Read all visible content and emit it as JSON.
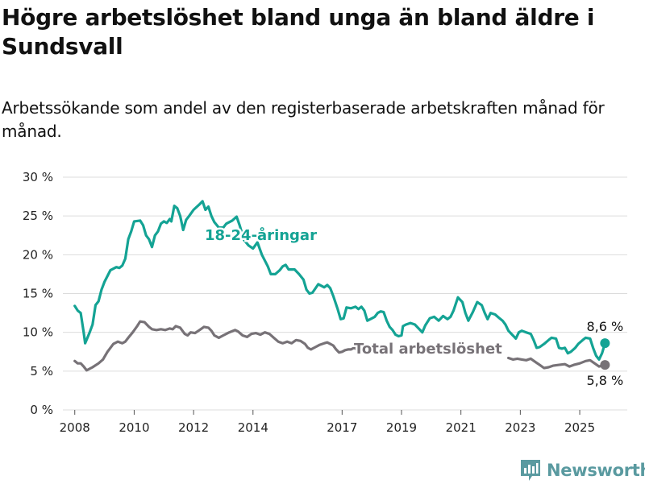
{
  "title": "Högre arbetslöshet bland unga än bland äldre i Sundsvall",
  "subtitle": "Arbetssökande som andel av den registerbaserade arbetskraften månad för månad.",
  "brand": "Newsworthy",
  "colors": {
    "youth": "#14a394",
    "total": "#777277",
    "grid": "#dcdcdc",
    "brand": "#5a9aa0"
  },
  "chart_data": {
    "type": "line",
    "xlim": [
      2007.6,
      2026.6
    ],
    "ylim": [
      0,
      30
    ],
    "x_ticks": [
      2008,
      2010,
      2012,
      2014,
      2017,
      2019,
      2021,
      2023,
      2025
    ],
    "y_ticks": [
      0,
      5,
      10,
      15,
      20,
      25,
      30
    ],
    "y_tick_labels": [
      "0 %",
      "5 %",
      "10 %",
      "15 %",
      "20 %",
      "25 %",
      "30 %"
    ],
    "grid": true,
    "series": [
      {
        "name": "18-24-åringar",
        "end_label": "8,6 %",
        "points": [
          [
            2008.0,
            13.4
          ],
          [
            2008.1,
            12.8
          ],
          [
            2008.2,
            12.5
          ],
          [
            2008.3,
            10.0
          ],
          [
            2008.35,
            8.6
          ],
          [
            2008.5,
            10.0
          ],
          [
            2008.6,
            11.0
          ],
          [
            2008.7,
            13.5
          ],
          [
            2008.8,
            14.0
          ],
          [
            2008.9,
            15.5
          ],
          [
            2009.0,
            16.5
          ],
          [
            2009.2,
            18.0
          ],
          [
            2009.4,
            18.4
          ],
          [
            2009.5,
            18.3
          ],
          [
            2009.6,
            18.6
          ],
          [
            2009.7,
            19.5
          ],
          [
            2009.8,
            22.0
          ],
          [
            2009.9,
            23.0
          ],
          [
            2010.0,
            24.3
          ],
          [
            2010.2,
            24.4
          ],
          [
            2010.3,
            23.8
          ],
          [
            2010.4,
            22.5
          ],
          [
            2010.5,
            22.0
          ],
          [
            2010.6,
            21.0
          ],
          [
            2010.7,
            22.5
          ],
          [
            2010.8,
            23.0
          ],
          [
            2010.9,
            24.0
          ],
          [
            2011.0,
            24.3
          ],
          [
            2011.1,
            24.1
          ],
          [
            2011.2,
            24.6
          ],
          [
            2011.25,
            24.3
          ],
          [
            2011.35,
            26.3
          ],
          [
            2011.45,
            26.0
          ],
          [
            2011.55,
            25.0
          ],
          [
            2011.65,
            23.2
          ],
          [
            2011.75,
            24.5
          ],
          [
            2011.85,
            25.0
          ],
          [
            2012.0,
            25.8
          ],
          [
            2012.2,
            26.5
          ],
          [
            2012.3,
            26.9
          ],
          [
            2012.4,
            25.8
          ],
          [
            2012.5,
            26.2
          ],
          [
            2012.6,
            25.0
          ],
          [
            2012.7,
            24.2
          ],
          [
            2012.85,
            23.5
          ],
          [
            2013.0,
            23.5
          ],
          [
            2013.1,
            24.0
          ],
          [
            2013.3,
            24.4
          ],
          [
            2013.45,
            24.9
          ],
          [
            2013.55,
            23.8
          ],
          [
            2013.7,
            21.9
          ],
          [
            2013.85,
            21.2
          ],
          [
            2014.0,
            20.8
          ],
          [
            2014.15,
            21.6
          ],
          [
            2014.3,
            20.0
          ],
          [
            2014.5,
            18.5
          ],
          [
            2014.6,
            17.5
          ],
          [
            2014.75,
            17.5
          ],
          [
            2014.9,
            18.0
          ],
          [
            2015.0,
            18.5
          ],
          [
            2015.1,
            18.7
          ],
          [
            2015.2,
            18.1
          ],
          [
            2015.4,
            18.1
          ],
          [
            2015.55,
            17.5
          ],
          [
            2015.7,
            16.8
          ],
          [
            2015.8,
            15.5
          ],
          [
            2015.9,
            15.0
          ],
          [
            2016.0,
            15.1
          ],
          [
            2016.2,
            16.2
          ],
          [
            2016.4,
            15.8
          ],
          [
            2016.5,
            16.1
          ],
          [
            2016.6,
            15.7
          ],
          [
            2016.7,
            14.7
          ],
          [
            2016.85,
            13.0
          ],
          [
            2016.95,
            11.7
          ],
          [
            2017.05,
            11.8
          ],
          [
            2017.15,
            13.2
          ],
          [
            2017.3,
            13.1
          ],
          [
            2017.45,
            13.3
          ],
          [
            2017.55,
            13.0
          ],
          [
            2017.65,
            13.3
          ],
          [
            2017.75,
            12.8
          ],
          [
            2017.85,
            11.5
          ],
          [
            2017.95,
            11.7
          ],
          [
            2018.1,
            12.0
          ],
          [
            2018.2,
            12.5
          ],
          [
            2018.3,
            12.7
          ],
          [
            2018.4,
            12.6
          ],
          [
            2018.5,
            11.5
          ],
          [
            2018.6,
            10.7
          ],
          [
            2018.7,
            10.3
          ],
          [
            2018.8,
            9.7
          ],
          [
            2018.9,
            9.5
          ],
          [
            2019.0,
            9.6
          ],
          [
            2019.05,
            10.8
          ],
          [
            2019.15,
            11.0
          ],
          [
            2019.3,
            11.2
          ],
          [
            2019.45,
            11.0
          ],
          [
            2019.55,
            10.6
          ],
          [
            2019.7,
            10.0
          ],
          [
            2019.8,
            10.9
          ],
          [
            2019.95,
            11.8
          ],
          [
            2020.1,
            12.0
          ],
          [
            2020.25,
            11.5
          ],
          [
            2020.4,
            12.1
          ],
          [
            2020.55,
            11.7
          ],
          [
            2020.65,
            12.0
          ],
          [
            2020.75,
            12.8
          ],
          [
            2020.9,
            14.5
          ],
          [
            2021.05,
            13.9
          ],
          [
            2021.15,
            12.5
          ],
          [
            2021.25,
            11.5
          ],
          [
            2021.4,
            12.6
          ],
          [
            2021.55,
            13.9
          ],
          [
            2021.7,
            13.5
          ],
          [
            2021.8,
            12.5
          ],
          [
            2021.9,
            11.7
          ],
          [
            2022.0,
            12.5
          ],
          [
            2022.15,
            12.3
          ],
          [
            2022.3,
            11.8
          ],
          [
            2022.4,
            11.5
          ],
          [
            2022.5,
            11.0
          ],
          [
            2022.6,
            10.2
          ],
          [
            2022.7,
            9.8
          ],
          [
            2022.85,
            9.2
          ],
          [
            2022.95,
            10.0
          ],
          [
            2023.05,
            10.2
          ],
          [
            2023.2,
            10.0
          ],
          [
            2023.35,
            9.8
          ],
          [
            2023.45,
            9.0
          ],
          [
            2023.55,
            8.0
          ],
          [
            2023.65,
            8.1
          ],
          [
            2023.8,
            8.5
          ],
          [
            2023.95,
            9.0
          ],
          [
            2024.05,
            9.3
          ],
          [
            2024.2,
            9.2
          ],
          [
            2024.3,
            8.0
          ],
          [
            2024.4,
            7.9
          ],
          [
            2024.5,
            8.0
          ],
          [
            2024.6,
            7.3
          ],
          [
            2024.7,
            7.5
          ],
          [
            2024.85,
            8.0
          ],
          [
            2024.95,
            8.5
          ],
          [
            2025.1,
            9.0
          ],
          [
            2025.2,
            9.3
          ],
          [
            2025.35,
            9.2
          ],
          [
            2025.45,
            8.0
          ],
          [
            2025.55,
            7.0
          ],
          [
            2025.65,
            6.5
          ],
          [
            2025.75,
            7.3
          ],
          [
            2025.85,
            8.6
          ]
        ]
      },
      {
        "name": "Total arbetslöshet",
        "end_label": "5,8 %",
        "points": [
          [
            2008.0,
            6.3
          ],
          [
            2008.1,
            6.0
          ],
          [
            2008.2,
            6.0
          ],
          [
            2008.3,
            5.6
          ],
          [
            2008.4,
            5.1
          ],
          [
            2008.5,
            5.3
          ],
          [
            2008.6,
            5.5
          ],
          [
            2008.8,
            6.0
          ],
          [
            2008.95,
            6.5
          ],
          [
            2009.1,
            7.5
          ],
          [
            2009.3,
            8.5
          ],
          [
            2009.45,
            8.8
          ],
          [
            2009.6,
            8.6
          ],
          [
            2009.7,
            8.8
          ],
          [
            2009.8,
            9.3
          ],
          [
            2009.95,
            10.0
          ],
          [
            2010.1,
            10.8
          ],
          [
            2010.2,
            11.4
          ],
          [
            2010.35,
            11.3
          ],
          [
            2010.5,
            10.7
          ],
          [
            2010.6,
            10.4
          ],
          [
            2010.75,
            10.3
          ],
          [
            2010.9,
            10.4
          ],
          [
            2011.05,
            10.3
          ],
          [
            2011.2,
            10.5
          ],
          [
            2011.3,
            10.4
          ],
          [
            2011.4,
            10.8
          ],
          [
            2011.55,
            10.6
          ],
          [
            2011.7,
            9.8
          ],
          [
            2011.8,
            9.6
          ],
          [
            2011.9,
            10.0
          ],
          [
            2012.05,
            9.9
          ],
          [
            2012.2,
            10.3
          ],
          [
            2012.35,
            10.7
          ],
          [
            2012.5,
            10.6
          ],
          [
            2012.6,
            10.2
          ],
          [
            2012.7,
            9.6
          ],
          [
            2012.85,
            9.3
          ],
          [
            2013.0,
            9.6
          ],
          [
            2013.2,
            10.0
          ],
          [
            2013.4,
            10.3
          ],
          [
            2013.5,
            10.1
          ],
          [
            2013.65,
            9.6
          ],
          [
            2013.8,
            9.4
          ],
          [
            2013.95,
            9.8
          ],
          [
            2014.1,
            9.9
          ],
          [
            2014.25,
            9.7
          ],
          [
            2014.4,
            10.0
          ],
          [
            2014.55,
            9.8
          ],
          [
            2014.7,
            9.3
          ],
          [
            2014.85,
            8.8
          ],
          [
            2015.0,
            8.6
          ],
          [
            2015.15,
            8.8
          ],
          [
            2015.3,
            8.6
          ],
          [
            2015.45,
            9.0
          ],
          [
            2015.6,
            8.9
          ],
          [
            2015.75,
            8.5
          ],
          [
            2015.85,
            8.0
          ],
          [
            2015.95,
            7.8
          ],
          [
            2016.1,
            8.1
          ],
          [
            2016.25,
            8.4
          ],
          [
            2016.4,
            8.6
          ],
          [
            2016.5,
            8.7
          ],
          [
            2016.6,
            8.5
          ],
          [
            2016.7,
            8.3
          ],
          [
            2016.8,
            7.8
          ],
          [
            2016.9,
            7.4
          ],
          [
            2017.0,
            7.5
          ],
          [
            2017.1,
            7.7
          ],
          [
            2017.2,
            7.8
          ],
          [
            2017.3,
            7.8
          ],
          [
            2017.4,
            8.0
          ],
          [
            2017.5,
            7.8
          ]
        ],
        "points_after_label": [
          [
            2022.6,
            6.7
          ],
          [
            2022.75,
            6.5
          ],
          [
            2022.9,
            6.6
          ],
          [
            2023.05,
            6.5
          ],
          [
            2023.2,
            6.4
          ],
          [
            2023.35,
            6.6
          ],
          [
            2023.5,
            6.2
          ],
          [
            2023.65,
            5.8
          ],
          [
            2023.8,
            5.4
          ],
          [
            2023.95,
            5.5
          ],
          [
            2024.1,
            5.7
          ],
          [
            2024.3,
            5.8
          ],
          [
            2024.5,
            5.9
          ],
          [
            2024.65,
            5.6
          ],
          [
            2024.8,
            5.8
          ],
          [
            2025.0,
            6.0
          ],
          [
            2025.2,
            6.3
          ],
          [
            2025.35,
            6.4
          ],
          [
            2025.5,
            6.0
          ],
          [
            2025.65,
            5.6
          ],
          [
            2025.85,
            5.8
          ]
        ]
      }
    ]
  }
}
